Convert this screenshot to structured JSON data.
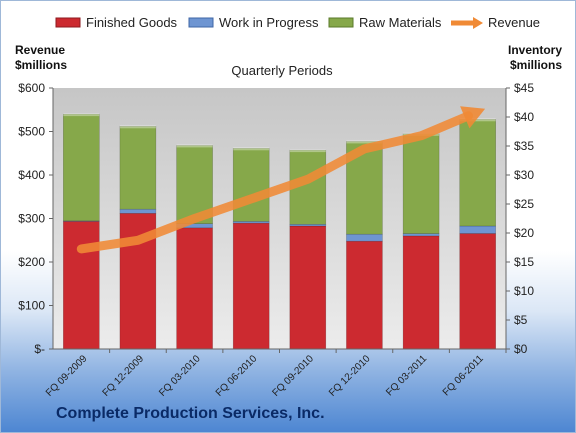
{
  "chart_data": {
    "type": "bar",
    "stacked": true,
    "categories": [
      "FQ 09-2009",
      "FQ 12-2009",
      "FQ 03-2010",
      "FQ 06-2010",
      "FQ 09-2010",
      "FQ 12-2010",
      "FQ 03-2011",
      "FQ 06-2011"
    ],
    "series": [
      {
        "name": "Finished Goods",
        "axis": "right",
        "color": "#cc2a30",
        "values": [
          22.0,
          23.4,
          20.9,
          21.7,
          21.2,
          18.6,
          19.5,
          19.9
        ]
      },
      {
        "name": "Work in Progress",
        "axis": "right",
        "color": "#6e95d2",
        "values": [
          0.1,
          0.7,
          0.7,
          0.3,
          0.3,
          1.2,
          0.4,
          1.3
        ]
      },
      {
        "name": "Raw Materials",
        "axis": "right",
        "color": "#86a84a",
        "values": [
          18.4,
          14.3,
          13.5,
          12.6,
          12.8,
          16.0,
          17.2,
          18.4
        ]
      },
      {
        "name": "Revenue",
        "axis": "left",
        "type": "line",
        "color": "#f08a35",
        "values": [
          230,
          250,
          300,
          345,
          390,
          460,
          490,
          545
        ]
      }
    ],
    "subtitle": "Quarterly Periods",
    "left_axis": {
      "label": "Revenue\n$millions",
      "ylim": [
        0,
        600
      ],
      "ticks": [
        0,
        100,
        200,
        300,
        400,
        500,
        600
      ],
      "tick_labels": [
        "$-",
        "$100",
        "$200",
        "$300",
        "$400",
        "$500",
        "$600"
      ]
    },
    "right_axis": {
      "label": "Inventory\n$millions",
      "ylim": [
        0,
        45
      ],
      "ticks": [
        0,
        5,
        10,
        15,
        20,
        25,
        30,
        35,
        40,
        45
      ],
      "tick_labels": [
        "$0",
        "$5",
        "$10",
        "$15",
        "$20",
        "$25",
        "$30",
        "$35",
        "$40",
        "$45"
      ]
    },
    "grid": false,
    "legend_position": "top",
    "company": "Complete Production Services, Inc."
  }
}
